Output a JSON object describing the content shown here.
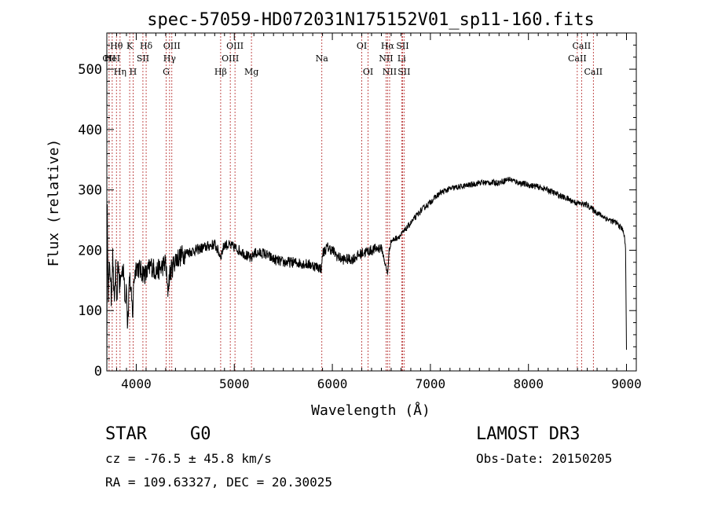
{
  "chart_data": {
    "type": "line",
    "title": "spec-57059-HD072031N175152V01_sp11-160.fits",
    "xlabel": "Wavelength (Å)",
    "ylabel": "Flux (relative)",
    "xlim": [
      3700,
      9100
    ],
    "ylim": [
      0,
      560
    ],
    "x_ticks": [
      4000,
      5000,
      6000,
      7000,
      8000,
      9000
    ],
    "y_ticks": [
      0,
      100,
      200,
      300,
      400,
      500
    ],
    "series": [
      {
        "name": "flux",
        "points": [
          [
            3700,
            15
          ],
          [
            3705,
            260
          ],
          [
            3715,
            130
          ],
          [
            3730,
            180
          ],
          [
            3745,
            120
          ],
          [
            3760,
            190
          ],
          [
            3775,
            110
          ],
          [
            3790,
            170
          ],
          [
            3800,
            100
          ],
          [
            3815,
            185
          ],
          [
            3830,
            140
          ],
          [
            3850,
            160
          ],
          [
            3870,
            175
          ],
          [
            3885,
            110
          ],
          [
            3900,
            150
          ],
          [
            3910,
            80
          ],
          [
            3920,
            105
          ],
          [
            3930,
            160
          ],
          [
            3950,
            120
          ],
          [
            3965,
            95
          ],
          [
            3975,
            150
          ],
          [
            4000,
            175
          ],
          [
            4050,
            165
          ],
          [
            4100,
            160
          ],
          [
            4150,
            175
          ],
          [
            4200,
            165
          ],
          [
            4250,
            170
          ],
          [
            4300,
            180
          ],
          [
            4320,
            130
          ],
          [
            4340,
            160
          ],
          [
            4400,
            185
          ],
          [
            4450,
            190
          ],
          [
            4500,
            195
          ],
          [
            4600,
            200
          ],
          [
            4700,
            205
          ],
          [
            4800,
            210
          ],
          [
            4861,
            190
          ],
          [
            4900,
            210
          ],
          [
            5000,
            205
          ],
          [
            5100,
            195
          ],
          [
            5172,
            185
          ],
          [
            5200,
            195
          ],
          [
            5300,
            195
          ],
          [
            5400,
            185
          ],
          [
            5500,
            180
          ],
          [
            5600,
            180
          ],
          [
            5700,
            178
          ],
          [
            5800,
            175
          ],
          [
            5890,
            170
          ],
          [
            5900,
            195
          ],
          [
            5950,
            205
          ],
          [
            6000,
            200
          ],
          [
            6050,
            190
          ],
          [
            6100,
            185
          ],
          [
            6200,
            185
          ],
          [
            6300,
            195
          ],
          [
            6400,
            200
          ],
          [
            6500,
            205
          ],
          [
            6563,
            160
          ],
          [
            6580,
            200
          ],
          [
            6600,
            215
          ],
          [
            6700,
            225
          ],
          [
            6800,
            245
          ],
          [
            6900,
            265
          ],
          [
            7000,
            280
          ],
          [
            7100,
            295
          ],
          [
            7200,
            302
          ],
          [
            7300,
            305
          ],
          [
            7400,
            308
          ],
          [
            7500,
            312
          ],
          [
            7600,
            312
          ],
          [
            7700,
            312
          ],
          [
            7800,
            318
          ],
          [
            7900,
            312
          ],
          [
            8000,
            308
          ],
          [
            8100,
            305
          ],
          [
            8200,
            300
          ],
          [
            8300,
            292
          ],
          [
            8400,
            285
          ],
          [
            8500,
            278
          ],
          [
            8600,
            275
          ],
          [
            8700,
            262
          ],
          [
            8800,
            252
          ],
          [
            8900,
            245
          ],
          [
            8970,
            232
          ],
          [
            8990,
            205
          ],
          [
            9000,
            35
          ]
        ]
      }
    ],
    "line_markers": [
      {
        "name": "CII",
        "wavelength": 3723,
        "row": 2
      },
      {
        "name": "HeI",
        "wavelength": 3755,
        "row": 2
      },
      {
        "name": "Hθ",
        "wavelength": 3798,
        "row": 1
      },
      {
        "name": "Hη",
        "wavelength": 3835,
        "row": 3
      },
      {
        "name": "K",
        "wavelength": 3933,
        "row": 1
      },
      {
        "name": "H",
        "wavelength": 3968,
        "row": 3
      },
      {
        "name": "SII",
        "wavelength": 4068,
        "row": 2
      },
      {
        "name": "Hδ",
        "wavelength": 4101,
        "row": 1
      },
      {
        "name": "G",
        "wavelength": 4305,
        "row": 3
      },
      {
        "name": "Hγ",
        "wavelength": 4340,
        "row": 2
      },
      {
        "name": "OIII",
        "wavelength": 4363,
        "row": 1
      },
      {
        "name": "Hβ",
        "wavelength": 4861,
        "row": 3
      },
      {
        "name": "OIII",
        "wavelength": 4959,
        "row": 2
      },
      {
        "name": "OIII",
        "wavelength": 5007,
        "row": 1
      },
      {
        "name": "Mg",
        "wavelength": 5175,
        "row": 3
      },
      {
        "name": "Na",
        "wavelength": 5893,
        "row": 2
      },
      {
        "name": "OI",
        "wavelength": 6300,
        "row": 1
      },
      {
        "name": "OI",
        "wavelength": 6364,
        "row": 3
      },
      {
        "name": "NII",
        "wavelength": 6548,
        "row": 2
      },
      {
        "name": "Hα",
        "wavelength": 6563,
        "row": 1
      },
      {
        "name": "NII",
        "wavelength": 6584,
        "row": 3
      },
      {
        "name": "Li",
        "wavelength": 6707,
        "row": 2
      },
      {
        "name": "SII",
        "wavelength": 6716,
        "row": 1
      },
      {
        "name": "SII",
        "wavelength": 6731,
        "row": 3
      },
      {
        "name": "CaII",
        "wavelength": 8498,
        "row": 2
      },
      {
        "name": "CaII",
        "wavelength": 8542,
        "row": 1
      },
      {
        "name": "CaII",
        "wavelength": 8662,
        "row": 3
      }
    ],
    "marker_color": "#b22222",
    "line_color": "#000000"
  },
  "info": {
    "object_class": "STAR",
    "subclass": "G0",
    "survey": "LAMOST DR3",
    "redshift": "cz = -76.5 ± 45.8 km/s",
    "obs_date": "Obs-Date: 20150205",
    "coords": "RA = 109.63327, DEC =  20.30025"
  }
}
